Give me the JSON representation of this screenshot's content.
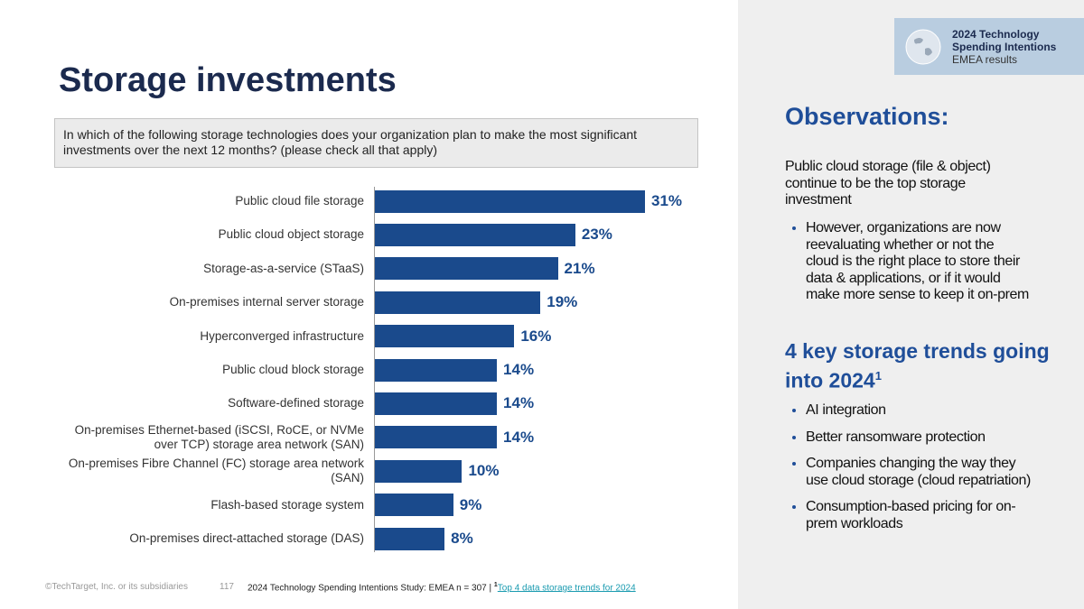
{
  "title": "Storage investments",
  "question": "In which of the following storage technologies does your organization plan to make the most significant investments over the next 12 months? (please check all that apply)",
  "badge": {
    "line1": "2024 Technology",
    "line2": "Spending Intentions",
    "line3": "EMEA results"
  },
  "chart_data": {
    "type": "bar",
    "orientation": "horizontal",
    "color": "#1a4a8c",
    "label_color": "#1a4a8c",
    "categories": [
      "Public cloud file storage",
      "Public cloud object storage",
      "Storage-as-a-service (STaaS)",
      "On-premises internal server storage",
      "Hyperconverged infrastructure",
      "Public cloud block storage",
      "Software-defined storage",
      "On-premises Ethernet-based (iSCSI, RoCE, or NVMe over TCP) storage area network (SAN)",
      "On-premises Fibre Channel (FC) storage area network (SAN)",
      "Flash-based storage system",
      "On-premises direct-attached storage (DAS)"
    ],
    "values": [
      31,
      23,
      21,
      19,
      16,
      14,
      14,
      14,
      10,
      9,
      8
    ],
    "value_labels": [
      "31%",
      "23%",
      "21%",
      "19%",
      "16%",
      "14%",
      "14%",
      "14%",
      "10%",
      "9%",
      "8%"
    ]
  },
  "observations": {
    "heading": "Observations:",
    "lead": "Public cloud storage (file & object) continue to be the top storage investment",
    "bullets": [
      "However, organizations are now reevaluating whether or not the cloud is the right place to store their data & applications, or if it would make more sense to keep it on-prem"
    ]
  },
  "trends": {
    "heading": "4 key storage trends going into 2024",
    "heading_note": "1",
    "bullets": [
      "AI integration",
      "Better ransomware protection",
      "Companies changing the way they use cloud storage (cloud repatriation)",
      "Consumption-based pricing for on-prem workloads"
    ]
  },
  "footer": {
    "copyright": "©TechTarget, Inc. or its subsidiaries",
    "page": "117",
    "source": "2024 Technology Spending Intentions Study: EMEA  n = 307 | ",
    "note": "1",
    "link": "Top 4 data storage trends for 2024"
  }
}
